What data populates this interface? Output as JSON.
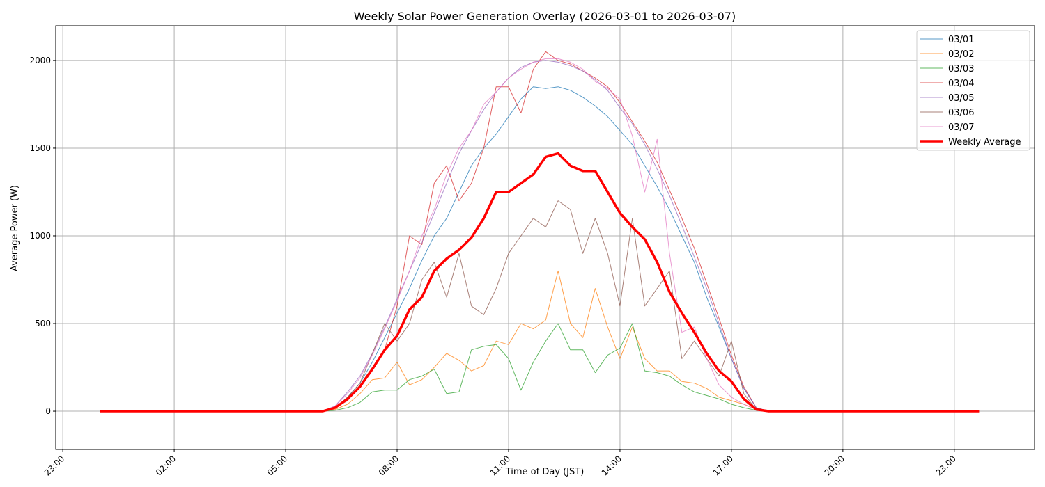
{
  "chart_data": {
    "type": "line",
    "title": "Weekly Solar Power Generation Overlay (2026-03-01 to 2026-03-07)",
    "xlabel": "Time of Day (JST)",
    "ylabel": "Average Power (W)",
    "xlim_hours": [
      -1.19,
      25.16
    ],
    "ylim": [
      -218,
      2198
    ],
    "grid": true,
    "legend_position": "top-right",
    "x_ticks": [
      {
        "label": "23:00",
        "hour": -1
      },
      {
        "label": "02:00",
        "hour": 2
      },
      {
        "label": "05:00",
        "hour": 5
      },
      {
        "label": "08:00",
        "hour": 8
      },
      {
        "label": "11:00",
        "hour": 11
      },
      {
        "label": "14:00",
        "hour": 14
      },
      {
        "label": "17:00",
        "hour": 17
      },
      {
        "label": "20:00",
        "hour": 20
      },
      {
        "label": "23:00",
        "hour": 23
      }
    ],
    "y_ticks": [
      0,
      500,
      1000,
      1500,
      2000
    ],
    "x": [
      "00:00",
      "00:20",
      "00:40",
      "01:00",
      "01:20",
      "01:40",
      "02:00",
      "02:20",
      "02:40",
      "03:00",
      "03:20",
      "03:40",
      "04:00",
      "04:20",
      "04:40",
      "05:00",
      "05:20",
      "05:40",
      "06:00",
      "06:20",
      "06:40",
      "07:00",
      "07:20",
      "07:40",
      "08:00",
      "08:20",
      "08:40",
      "09:00",
      "09:20",
      "09:40",
      "10:00",
      "10:20",
      "10:40",
      "11:00",
      "11:20",
      "11:40",
      "12:00",
      "12:20",
      "12:40",
      "13:00",
      "13:20",
      "13:40",
      "14:00",
      "14:20",
      "14:40",
      "15:00",
      "15:20",
      "15:40",
      "16:00",
      "16:20",
      "16:40",
      "17:00",
      "17:20",
      "17:40",
      "18:00",
      "18:20",
      "18:40",
      "19:00",
      "19:20",
      "19:40",
      "20:00",
      "20:20",
      "20:40",
      "21:00",
      "21:20",
      "21:40",
      "22:00",
      "22:20",
      "22:40",
      "23:00",
      "23:20",
      "23:40"
    ],
    "series": [
      {
        "name": "03/01",
        "color": "#1f77b4",
        "values": [
          0,
          0,
          0,
          0,
          0,
          0,
          0,
          0,
          0,
          0,
          0,
          0,
          0,
          0,
          0,
          0,
          0,
          0,
          0,
          20,
          80,
          160,
          280,
          420,
          560,
          700,
          860,
          1000,
          1100,
          1250,
          1400,
          1500,
          1580,
          1680,
          1780,
          1850,
          1840,
          1850,
          1830,
          1790,
          1740,
          1680,
          1600,
          1520,
          1400,
          1280,
          1150,
          1000,
          850,
          650,
          480,
          300,
          130,
          20,
          0,
          0,
          0,
          0,
          0,
          0,
          0,
          0,
          0,
          0,
          0,
          0,
          0,
          0,
          0,
          0,
          0,
          0
        ]
      },
      {
        "name": "03/02",
        "color": "#ff7f0e",
        "values": [
          0,
          0,
          0,
          0,
          0,
          0,
          0,
          0,
          0,
          0,
          0,
          0,
          0,
          0,
          0,
          0,
          0,
          0,
          0,
          10,
          40,
          100,
          180,
          190,
          280,
          150,
          180,
          250,
          330,
          290,
          230,
          260,
          400,
          380,
          500,
          470,
          520,
          800,
          500,
          420,
          700,
          480,
          300,
          480,
          300,
          230,
          230,
          170,
          160,
          130,
          80,
          60,
          40,
          10,
          0,
          0,
          0,
          0,
          0,
          0,
          0,
          0,
          0,
          0,
          0,
          0,
          0,
          0,
          0,
          0,
          0,
          0
        ]
      },
      {
        "name": "03/03",
        "color": "#2ca02c",
        "values": [
          0,
          0,
          0,
          0,
          0,
          0,
          0,
          0,
          0,
          0,
          0,
          0,
          0,
          0,
          0,
          0,
          0,
          0,
          0,
          5,
          20,
          50,
          110,
          120,
          120,
          180,
          200,
          240,
          100,
          110,
          350,
          370,
          380,
          300,
          120,
          280,
          400,
          500,
          350,
          350,
          220,
          320,
          360,
          500,
          230,
          220,
          200,
          150,
          110,
          90,
          70,
          40,
          20,
          5,
          0,
          0,
          0,
          0,
          0,
          0,
          0,
          0,
          0,
          0,
          0,
          0,
          0,
          0,
          0,
          0,
          0,
          0
        ]
      },
      {
        "name": "03/04",
        "color": "#d62728",
        "values": [
          0,
          0,
          0,
          0,
          0,
          0,
          0,
          0,
          0,
          0,
          0,
          0,
          0,
          0,
          0,
          0,
          0,
          0,
          0,
          20,
          60,
          150,
          250,
          350,
          600,
          1000,
          950,
          1300,
          1400,
          1200,
          1300,
          1500,
          1850,
          1850,
          1700,
          1950,
          2050,
          2000,
          1980,
          1940,
          1900,
          1850,
          1760,
          1650,
          1540,
          1420,
          1260,
          1100,
          930,
          730,
          530,
          320,
          140,
          20,
          0,
          0,
          0,
          0,
          0,
          0,
          0,
          0,
          0,
          0,
          0,
          0,
          0,
          0,
          0,
          0,
          0,
          0
        ]
      },
      {
        "name": "03/05",
        "color": "#9467bd",
        "values": [
          0,
          0,
          0,
          0,
          0,
          0,
          0,
          0,
          0,
          0,
          0,
          0,
          0,
          0,
          0,
          0,
          0,
          0,
          0,
          30,
          110,
          200,
          330,
          480,
          640,
          800,
          960,
          1130,
          1300,
          1470,
          1600,
          1720,
          1820,
          1900,
          1960,
          1990,
          2000,
          1990,
          1970,
          1940,
          1890,
          1830,
          1730,
          1640,
          1520,
          1380,
          1230,
          1060,
          880,
          700,
          500,
          300,
          130,
          20,
          0,
          0,
          0,
          0,
          0,
          0,
          0,
          0,
          0,
          0,
          0,
          0,
          0,
          0,
          0,
          0,
          0,
          0
        ]
      },
      {
        "name": "03/06",
        "color": "#8c564b",
        "values": [
          0,
          0,
          0,
          0,
          0,
          0,
          0,
          0,
          0,
          0,
          0,
          0,
          0,
          0,
          0,
          0,
          0,
          0,
          0,
          20,
          80,
          160,
          330,
          500,
          400,
          500,
          750,
          850,
          650,
          900,
          600,
          550,
          700,
          900,
          1000,
          1100,
          1050,
          1200,
          1150,
          900,
          1100,
          900,
          600,
          1100,
          600,
          700,
          800,
          300,
          400,
          300,
          200,
          400,
          100,
          10,
          0,
          0,
          0,
          0,
          0,
          0,
          0,
          0,
          0,
          0,
          0,
          0,
          0,
          0,
          0,
          0,
          0,
          0
        ]
      },
      {
        "name": "03/07",
        "color": "#e377c2",
        "values": [
          0,
          0,
          0,
          0,
          0,
          0,
          0,
          0,
          0,
          0,
          0,
          0,
          0,
          0,
          0,
          0,
          0,
          0,
          0,
          30,
          100,
          190,
          320,
          470,
          630,
          800,
          1000,
          1150,
          1350,
          1500,
          1600,
          1750,
          1820,
          1900,
          1950,
          1990,
          2010,
          2010,
          1990,
          1950,
          1880,
          1840,
          1780,
          1570,
          1250,
          1550,
          900,
          450,
          480,
          300,
          150,
          80,
          40,
          10,
          0,
          0,
          0,
          0,
          0,
          0,
          0,
          0,
          0,
          0,
          0,
          0,
          0,
          0,
          0,
          0,
          0,
          0
        ]
      },
      {
        "name": "Weekly Average",
        "color": "#ff0000",
        "values": [
          0,
          0,
          0,
          0,
          0,
          0,
          0,
          0,
          0,
          0,
          0,
          0,
          0,
          0,
          0,
          0,
          0,
          0,
          0,
          20,
          70,
          140,
          240,
          350,
          430,
          580,
          650,
          800,
          870,
          920,
          990,
          1100,
          1250,
          1250,
          1300,
          1350,
          1450,
          1470,
          1400,
          1370,
          1370,
          1250,
          1130,
          1050,
          980,
          850,
          680,
          560,
          450,
          330,
          230,
          170,
          70,
          10,
          0,
          0,
          0,
          0,
          0,
          0,
          0,
          0,
          0,
          0,
          0,
          0,
          0,
          0,
          0,
          0,
          0,
          0
        ]
      }
    ]
  }
}
